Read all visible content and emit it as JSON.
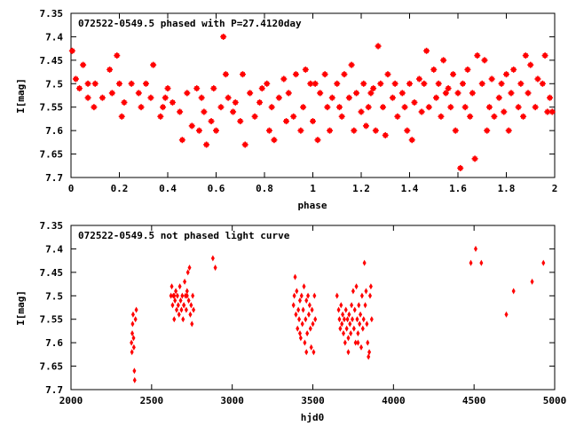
{
  "colors": {
    "points": "#ff0000",
    "axes": "#000000",
    "background": "#ffffff"
  },
  "chart_data": [
    {
      "type": "scatter",
      "title": "072522-0549.5 phased with P=27.4120day",
      "xlabel": "phase",
      "ylabel": "I[mag]",
      "xlim": [
        0,
        2
      ],
      "ylim": [
        7.35,
        7.7
      ],
      "y_inverted": true,
      "grid": false,
      "xticks": [
        0,
        0.2,
        0.4,
        0.6,
        0.8,
        1,
        1.2,
        1.4,
        1.6,
        1.8,
        2
      ],
      "xtick_labels": [
        "0",
        "0.2",
        "0.4",
        "0.6",
        "0.8",
        "1",
        "1.2",
        "1.4",
        "1.6",
        "1.8",
        "2"
      ],
      "yticks": [
        7.35,
        7.4,
        7.45,
        7.5,
        7.55,
        7.6,
        7.65,
        7.7
      ],
      "ytick_labels": [
        "7.35",
        "7.4",
        "7.45",
        "7.5",
        "7.55",
        "7.6",
        "7.65",
        "7.7"
      ],
      "marker": "star",
      "points": [
        [
          0.005,
          7.43
        ],
        [
          0.02,
          7.49
        ],
        [
          0.035,
          7.51
        ],
        [
          0.05,
          7.46
        ],
        [
          0.07,
          7.53
        ],
        [
          0.095,
          7.55
        ],
        [
          0.1,
          7.5
        ],
        [
          0.13,
          7.53
        ],
        [
          0.16,
          7.47
        ],
        [
          0.17,
          7.52
        ],
        [
          0.19,
          7.44
        ],
        [
          0.2,
          7.5
        ],
        [
          0.21,
          7.57
        ],
        [
          0.22,
          7.54
        ],
        [
          0.25,
          7.5
        ],
        [
          0.28,
          7.52
        ],
        [
          0.29,
          7.55
        ],
        [
          0.31,
          7.5
        ],
        [
          0.33,
          7.53
        ],
        [
          0.34,
          7.46
        ],
        [
          0.37,
          7.57
        ],
        [
          0.38,
          7.55
        ],
        [
          0.39,
          7.53
        ],
        [
          0.4,
          7.51
        ],
        [
          0.42,
          7.54
        ],
        [
          0.45,
          7.56
        ],
        [
          0.46,
          7.62
        ],
        [
          0.48,
          7.52
        ],
        [
          0.5,
          7.59
        ],
        [
          0.52,
          7.51
        ],
        [
          0.53,
          7.6
        ],
        [
          0.55,
          7.56
        ],
        [
          0.56,
          7.63
        ],
        [
          0.58,
          7.58
        ],
        [
          0.59,
          7.51
        ],
        [
          0.6,
          7.6
        ],
        [
          0.62,
          7.55
        ],
        [
          0.63,
          7.4
        ],
        [
          0.64,
          7.48
        ],
        [
          0.65,
          7.53
        ],
        [
          0.67,
          7.56
        ],
        [
          0.68,
          7.54
        ],
        [
          0.7,
          7.58
        ],
        [
          0.71,
          7.48
        ],
        [
          0.72,
          7.63
        ],
        [
          0.74,
          7.52
        ],
        [
          0.76,
          7.57
        ],
        [
          0.78,
          7.54
        ],
        [
          0.79,
          7.51
        ],
        [
          0.81,
          7.5
        ],
        [
          0.82,
          7.6
        ],
        [
          0.83,
          7.55
        ],
        [
          0.84,
          7.62
        ],
        [
          0.86,
          7.53
        ],
        [
          0.88,
          7.49
        ],
        [
          0.89,
          7.58
        ],
        [
          0.9,
          7.52
        ],
        [
          0.92,
          7.57
        ],
        [
          0.93,
          7.48
        ],
        [
          0.95,
          7.6
        ],
        [
          0.96,
          7.55
        ],
        [
          0.97,
          7.47
        ],
        [
          0.99,
          7.5
        ],
        [
          1.0,
          7.58
        ],
        [
          1.01,
          7.5
        ],
        [
          1.02,
          7.62
        ],
        [
          1.03,
          7.52
        ],
        [
          1.05,
          7.48
        ],
        [
          1.06,
          7.55
        ],
        [
          1.07,
          7.6
        ],
        [
          1.08,
          7.53
        ],
        [
          1.1,
          7.5
        ],
        [
          1.11,
          7.55
        ],
        [
          1.12,
          7.57
        ],
        [
          1.13,
          7.48
        ],
        [
          1.15,
          7.53
        ],
        [
          1.16,
          7.46
        ],
        [
          1.17,
          7.6
        ],
        [
          1.18,
          7.52
        ],
        [
          1.2,
          7.56
        ],
        [
          1.21,
          7.5
        ],
        [
          1.22,
          7.59
        ],
        [
          1.23,
          7.55
        ],
        [
          1.24,
          7.52
        ],
        [
          1.26,
          7.6
        ],
        [
          1.27,
          7.42
        ],
        [
          1.28,
          7.5
        ],
        [
          1.29,
          7.55
        ],
        [
          1.3,
          7.61
        ],
        [
          1.31,
          7.48
        ],
        [
          1.33,
          7.53
        ],
        [
          1.34,
          7.5
        ],
        [
          1.35,
          7.57
        ],
        [
          1.37,
          7.52
        ],
        [
          1.38,
          7.55
        ],
        [
          1.39,
          7.6
        ],
        [
          1.4,
          7.5
        ],
        [
          1.41,
          7.62
        ],
        [
          1.42,
          7.54
        ],
        [
          1.44,
          7.49
        ],
        [
          1.45,
          7.56
        ],
        [
          1.46,
          7.5
        ],
        [
          1.47,
          7.43
        ],
        [
          1.48,
          7.55
        ],
        [
          1.5,
          7.47
        ],
        [
          1.51,
          7.53
        ],
        [
          1.52,
          7.5
        ],
        [
          1.53,
          7.57
        ],
        [
          1.54,
          7.45
        ],
        [
          1.55,
          7.52
        ],
        [
          1.57,
          7.55
        ],
        [
          1.58,
          7.48
        ],
        [
          1.59,
          7.6
        ],
        [
          1.6,
          7.52
        ],
        [
          1.61,
          7.68
        ],
        [
          1.62,
          7.5
        ],
        [
          1.63,
          7.55
        ],
        [
          1.64,
          7.47
        ],
        [
          1.65,
          7.57
        ],
        [
          1.66,
          7.52
        ],
        [
          1.67,
          7.66
        ],
        [
          1.68,
          7.44
        ],
        [
          1.7,
          7.5
        ],
        [
          1.71,
          7.45
        ],
        [
          1.72,
          7.6
        ],
        [
          1.73,
          7.55
        ],
        [
          1.74,
          7.49
        ],
        [
          1.75,
          7.57
        ],
        [
          1.77,
          7.53
        ],
        [
          1.78,
          7.5
        ],
        [
          1.79,
          7.56
        ],
        [
          1.8,
          7.48
        ],
        [
          1.81,
          7.6
        ],
        [
          1.82,
          7.52
        ],
        [
          1.83,
          7.47
        ],
        [
          1.85,
          7.55
        ],
        [
          1.86,
          7.5
        ],
        [
          1.87,
          7.57
        ],
        [
          1.88,
          7.44
        ],
        [
          1.89,
          7.52
        ],
        [
          1.9,
          7.46
        ],
        [
          1.92,
          7.55
        ],
        [
          1.93,
          7.49
        ],
        [
          1.95,
          7.5
        ],
        [
          1.96,
          7.44
        ],
        [
          1.97,
          7.56
        ],
        [
          1.98,
          7.53
        ],
        [
          1.99,
          7.56
        ],
        [
          0.07,
          7.5
        ],
        [
          0.54,
          7.53
        ],
        [
          1.25,
          7.51
        ],
        [
          1.56,
          7.51
        ]
      ]
    },
    {
      "type": "scatter",
      "title": "072522-0549.5 not phased light curve",
      "xlabel": "hjd0",
      "ylabel": "I[mag]",
      "xlim": [
        2000,
        5000
      ],
      "ylim": [
        7.35,
        7.7
      ],
      "y_inverted": true,
      "grid": false,
      "xticks": [
        2000,
        2500,
        3000,
        3500,
        4000,
        4500,
        5000
      ],
      "xtick_labels": [
        "2000",
        "2500",
        "3000",
        "3500",
        "4000",
        "4500",
        "5000"
      ],
      "yticks": [
        7.35,
        7.4,
        7.45,
        7.5,
        7.55,
        7.6,
        7.65,
        7.7
      ],
      "ytick_labels": [
        "7.35",
        "7.4",
        "7.45",
        "7.5",
        "7.55",
        "7.6",
        "7.65",
        "7.7"
      ],
      "marker": "diamond",
      "points": [
        [
          2375,
          7.6
        ],
        [
          2378,
          7.62
        ],
        [
          2380,
          7.58
        ],
        [
          2382,
          7.56
        ],
        [
          2385,
          7.54
        ],
        [
          2388,
          7.59
        ],
        [
          2390,
          7.61
        ],
        [
          2393,
          7.66
        ],
        [
          2395,
          7.68
        ],
        [
          2400,
          7.55
        ],
        [
          2405,
          7.53
        ],
        [
          2620,
          7.5
        ],
        [
          2625,
          7.48
        ],
        [
          2630,
          7.52
        ],
        [
          2635,
          7.5
        ],
        [
          2640,
          7.55
        ],
        [
          2645,
          7.51
        ],
        [
          2650,
          7.49
        ],
        [
          2655,
          7.53
        ],
        [
          2660,
          7.5
        ],
        [
          2665,
          7.52
        ],
        [
          2670,
          7.54
        ],
        [
          2675,
          7.48
        ],
        [
          2680,
          7.51
        ],
        [
          2685,
          7.53
        ],
        [
          2690,
          7.5
        ],
        [
          2695,
          7.55
        ],
        [
          2700,
          7.52
        ],
        [
          2705,
          7.47
        ],
        [
          2710,
          7.5
        ],
        [
          2715,
          7.53
        ],
        [
          2720,
          7.49
        ],
        [
          2725,
          7.45
        ],
        [
          2730,
          7.51
        ],
        [
          2735,
          7.44
        ],
        [
          2740,
          7.54
        ],
        [
          2745,
          7.52
        ],
        [
          2750,
          7.56
        ],
        [
          2755,
          7.5
        ],
        [
          2760,
          7.53
        ],
        [
          2640,
          7.5
        ],
        [
          2700,
          7.52
        ],
        [
          2720,
          7.5
        ],
        [
          2880,
          7.42
        ],
        [
          2895,
          7.44
        ],
        [
          3380,
          7.52
        ],
        [
          3385,
          7.5
        ],
        [
          3390,
          7.46
        ],
        [
          3395,
          7.54
        ],
        [
          3400,
          7.49
        ],
        [
          3405,
          7.57
        ],
        [
          3410,
          7.53
        ],
        [
          3415,
          7.55
        ],
        [
          3420,
          7.51
        ],
        [
          3425,
          7.59
        ],
        [
          3430,
          7.5
        ],
        [
          3435,
          7.56
        ],
        [
          3440,
          7.53
        ],
        [
          3445,
          7.48
        ],
        [
          3450,
          7.6
        ],
        [
          3455,
          7.55
        ],
        [
          3460,
          7.51
        ],
        [
          3465,
          7.58
        ],
        [
          3470,
          7.5
        ],
        [
          3475,
          7.54
        ],
        [
          3480,
          7.52
        ],
        [
          3485,
          7.57
        ],
        [
          3490,
          7.61
        ],
        [
          3495,
          7.53
        ],
        [
          3500,
          7.56
        ],
        [
          3505,
          7.62
        ],
        [
          3510,
          7.5
        ],
        [
          3515,
          7.55
        ],
        [
          3420,
          7.58
        ],
        [
          3460,
          7.62
        ],
        [
          3650,
          7.5
        ],
        [
          3660,
          7.53
        ],
        [
          3665,
          7.55
        ],
        [
          3670,
          7.57
        ],
        [
          3675,
          7.52
        ],
        [
          3680,
          7.56
        ],
        [
          3685,
          7.54
        ],
        [
          3690,
          7.58
        ],
        [
          3695,
          7.55
        ],
        [
          3700,
          7.6
        ],
        [
          3705,
          7.53
        ],
        [
          3710,
          7.57
        ],
        [
          3715,
          7.55
        ],
        [
          3720,
          7.59
        ],
        [
          3725,
          7.54
        ],
        [
          3730,
          7.56
        ],
        [
          3735,
          7.58
        ],
        [
          3740,
          7.52
        ],
        [
          3745,
          7.55
        ],
        [
          3750,
          7.49
        ],
        [
          3755,
          7.57
        ],
        [
          3760,
          7.53
        ],
        [
          3765,
          7.6
        ],
        [
          3770,
          7.48
        ],
        [
          3775,
          7.55
        ],
        [
          3780,
          7.58
        ],
        [
          3785,
          7.52
        ],
        [
          3790,
          7.56
        ],
        [
          3795,
          7.54
        ],
        [
          3800,
          7.61
        ],
        [
          3805,
          7.5
        ],
        [
          3810,
          7.57
        ],
        [
          3815,
          7.55
        ],
        [
          3820,
          7.43
        ],
        [
          3825,
          7.52
        ],
        [
          3830,
          7.49
        ],
        [
          3835,
          7.56
        ],
        [
          3840,
          7.6
        ],
        [
          3845,
          7.63
        ],
        [
          3850,
          7.62
        ],
        [
          3855,
          7.5
        ],
        [
          3860,
          7.48
        ],
        [
          3865,
          7.55
        ],
        [
          3720,
          7.62
        ],
        [
          3780,
          7.6
        ],
        [
          4480,
          7.43
        ],
        [
          4510,
          7.4
        ],
        [
          4545,
          7.43
        ],
        [
          4700,
          7.54
        ],
        [
          4745,
          7.49
        ],
        [
          4860,
          7.47
        ],
        [
          4930,
          7.43
        ]
      ]
    }
  ]
}
